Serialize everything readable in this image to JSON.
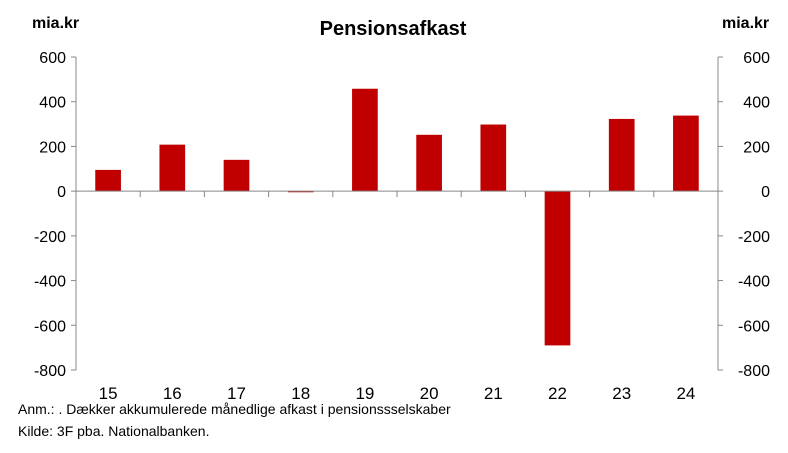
{
  "chart_data": {
    "type": "bar",
    "title": "Pensionsafkast",
    "ylabel_left": "mia.kr",
    "ylabel_right": "mia.kr",
    "categories": [
      "15",
      "16",
      "17",
      "18",
      "19",
      "20",
      "21",
      "22",
      "23",
      "24"
    ],
    "values": [
      95,
      208,
      140,
      -5,
      458,
      252,
      298,
      -690,
      323,
      338
    ],
    "ylim": [
      -800,
      600
    ],
    "yticks": [
      600,
      400,
      200,
      0,
      -200,
      -400,
      -600,
      -800
    ],
    "bar_color": "#C00000",
    "grid": false,
    "legend": "none"
  },
  "notes": {
    "anm": "Anm.: . Dækker akkumulerede månedlige afkast i pensionssselskaber",
    "source": "Kilde: 3F pba. Nationalbanken."
  }
}
